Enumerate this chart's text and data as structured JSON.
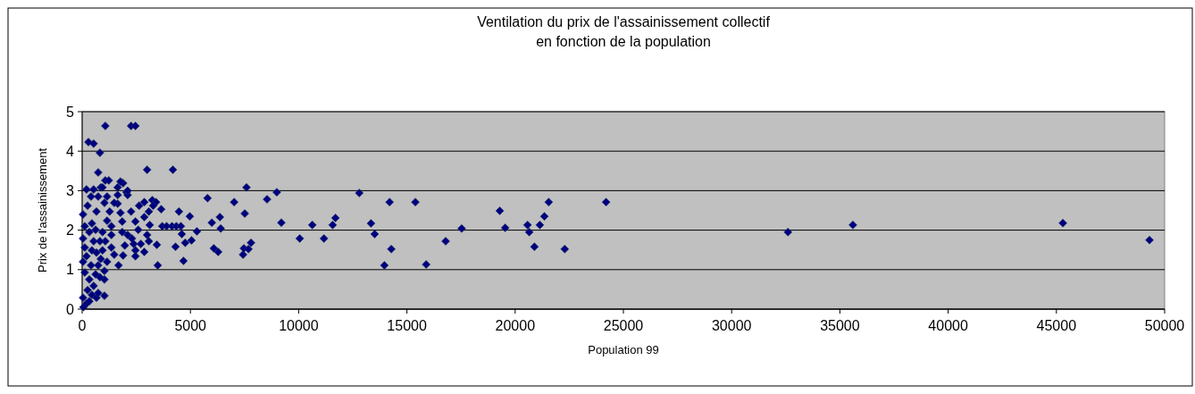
{
  "chart_data": {
    "type": "scatter",
    "title": "Ventilation du prix de l'assainissement collectif\nen fonction de la population",
    "xlabel": "Population 99",
    "ylabel": "Prix de l'assainissement",
    "xlim": [
      0,
      50000
    ],
    "xticks": [
      0,
      5000,
      10000,
      15000,
      20000,
      25000,
      30000,
      35000,
      40000,
      45000,
      50000
    ],
    "ylim": [
      0,
      5
    ],
    "yticks": [
      0,
      1,
      2,
      3,
      4,
      5
    ],
    "grid": "y",
    "marker": "diamond",
    "series": [
      {
        "color": "#000080",
        "x": [
          24200,
          45300,
          49300,
          32600,
          35600,
          7590,
          7510,
          8540,
          8990,
          9200,
          10050,
          10630,
          11170,
          11570,
          11700,
          12800,
          13340,
          13510,
          13960,
          14200,
          14280,
          15390,
          15890,
          16790,
          17530,
          19290,
          19540,
          7430,
          7470,
          7680,
          7800,
          20570,
          20650,
          20890,
          21140,
          21350,
          21550,
          22290,
          1070,
          2260,
          2460,
          290,
          530,
          820,
          3000,
          4190,
          740,
          5790,
          7020,
          4470,
          4970,
          5990,
          6360,
          6400,
          5300,
          6080,
          6280,
          4680,
          3490,
          4310,
          4760,
          5050,
          3080,
          3450,
          1680,
          1030,
          1030,
          3700,
          3900,
          4150,
          4350,
          4560,
          4600,
          3650,
          3240,
          3410,
          2870,
          2630,
          2050,
          2100,
          1070,
          1230,
          200,
          530,
          3080,
          2260,
          2460,
          1640,
          1640,
          1770,
          1850,
          1850,
          1970,
          1890,
          1480,
          1350,
          2380,
          2710,
          2300,
          2100,
          2460,
          1350,
          1350,
          1270,
          1030,
          1150,
          940,
          1070,
          940,
          860,
          740,
          1030,
          820,
          620,
          330,
          530,
          250,
          450,
          40,
          200,
          60,
          330,
          660,
          740,
          120,
          40,
          200,
          120,
          40,
          120,
          40,
          250,
          410,
          330,
          450,
          530,
          450,
          410,
          660,
          740,
          860,
          620,
          820,
          660,
          1150,
          1480,
          1640,
          1890,
          2100,
          2870,
          3120,
          3280,
          2590,
          3000,
          2870,
          2460,
          1150,
          940,
          1770
        ],
        "values": [
          2.71,
          2.18,
          1.75,
          1.95,
          2.13,
          3.08,
          2.42,
          2.78,
          2.96,
          2.19,
          1.79,
          2.13,
          1.79,
          2.13,
          2.31,
          2.94,
          2.17,
          1.9,
          1.11,
          2.71,
          1.52,
          2.71,
          1.13,
          1.72,
          2.04,
          2.49,
          2.06,
          1.38,
          1.54,
          1.52,
          1.68,
          2.13,
          1.95,
          1.58,
          2.13,
          2.35,
          2.71,
          1.52,
          4.64,
          4.64,
          4.64,
          4.23,
          4.19,
          3.96,
          3.53,
          3.53,
          3.46,
          2.81,
          2.71,
          2.47,
          2.35,
          2.19,
          2.33,
          2.04,
          1.97,
          1.54,
          1.45,
          1.22,
          1.11,
          1.58,
          1.68,
          1.74,
          1.72,
          1.63,
          1.11,
          0.75,
          0.34,
          2.1,
          2.1,
          2.1,
          2.1,
          2.1,
          1.9,
          2.53,
          2.76,
          2.71,
          2.71,
          2.62,
          2.96,
          2.89,
          3.26,
          3.26,
          3.03,
          3.03,
          2.47,
          2.47,
          2.22,
          2.89,
          2.67,
          2.44,
          2.22,
          1.95,
          1.61,
          1.36,
          1.38,
          1.56,
          1.65,
          1.65,
          1.79,
          1.88,
          1.49,
          1.88,
          2.1,
          2.47,
          2.69,
          2.24,
          1.95,
          1.72,
          1.49,
          1.27,
          1.11,
          0.97,
          0.81,
          0.88,
          0.75,
          0.59,
          0.48,
          0.36,
          0.29,
          0.14,
          0.05,
          0.2,
          0.29,
          0.41,
          0.93,
          1.2,
          1.34,
          1.56,
          1.79,
          2.1,
          2.4,
          2.62,
          2.85,
          1.95,
          2.17,
          1.72,
          1.49,
          1.11,
          2.47,
          2.85,
          3.08,
          2.01,
          1.72,
          1.43,
          2.85,
          2.69,
          3.08,
          3.19,
          3.0,
          2.33,
          2.13,
          2.62,
          2.01,
          1.88,
          1.45,
          1.34,
          1.2,
          3.08,
          3.23
        ]
      }
    ]
  }
}
